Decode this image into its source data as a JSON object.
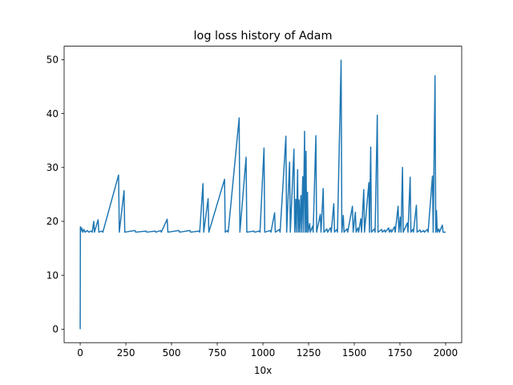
{
  "chart_data": {
    "type": "line",
    "title": "log loss history of Adam",
    "xlabel": "10x",
    "ylabel": "",
    "xlim": [
      -88,
      2088
    ],
    "ylim": [
      -2.5,
      52.5
    ],
    "xticks": [
      0,
      250,
      500,
      750,
      1000,
      1250,
      1500,
      1750,
      2000
    ],
    "yticks": [
      0,
      10,
      20,
      30,
      40,
      50
    ],
    "grid": false,
    "legend": false,
    "baseline": 18.0,
    "series": [
      {
        "color": "#1f77b4",
        "points": [
          [
            0,
            0
          ],
          [
            1,
            19.0
          ],
          [
            2,
            18.0
          ],
          [
            8,
            18.8
          ],
          [
            14,
            18.0
          ],
          [
            20,
            18.5
          ],
          [
            26,
            18.0
          ],
          [
            40,
            18.3
          ],
          [
            46,
            18.0
          ],
          [
            60,
            18.2
          ],
          [
            66,
            18.0
          ],
          [
            74,
            20.0
          ],
          [
            78,
            18.0
          ],
          [
            98,
            20.3
          ],
          [
            102,
            18.0
          ],
          [
            118,
            18.2
          ],
          [
            124,
            18.0
          ],
          [
            210,
            28.6
          ],
          [
            214,
            18.0
          ],
          [
            240,
            25.7
          ],
          [
            244,
            18.0
          ],
          [
            300,
            18.3
          ],
          [
            304,
            18.0
          ],
          [
            360,
            18.2
          ],
          [
            364,
            18.0
          ],
          [
            410,
            18.2
          ],
          [
            414,
            18.0
          ],
          [
            440,
            18.3
          ],
          [
            444,
            18.0
          ],
          [
            476,
            20.4
          ],
          [
            480,
            18.0
          ],
          [
            540,
            18.3
          ],
          [
            544,
            18.0
          ],
          [
            600,
            18.3
          ],
          [
            604,
            18.0
          ],
          [
            650,
            18.2
          ],
          [
            654,
            18.0
          ],
          [
            672,
            27.0
          ],
          [
            676,
            18.0
          ],
          [
            700,
            24.2
          ],
          [
            704,
            18.0
          ],
          [
            790,
            27.8
          ],
          [
            794,
            18.0
          ],
          [
            806,
            18.3
          ],
          [
            810,
            18.0
          ],
          [
            870,
            39.2
          ],
          [
            874,
            18.0
          ],
          [
            908,
            31.9
          ],
          [
            912,
            18.0
          ],
          [
            950,
            18.2
          ],
          [
            954,
            18.0
          ],
          [
            980,
            18.2
          ],
          [
            984,
            18.0
          ],
          [
            1006,
            33.6
          ],
          [
            1010,
            18.0
          ],
          [
            1040,
            18.3
          ],
          [
            1044,
            18.0
          ],
          [
            1064,
            21.6
          ],
          [
            1068,
            18.0
          ],
          [
            1090,
            18.5
          ],
          [
            1094,
            18.0
          ],
          [
            1126,
            35.8
          ],
          [
            1130,
            18.0
          ],
          [
            1146,
            31.0
          ],
          [
            1150,
            18.0
          ],
          [
            1170,
            33.4
          ],
          [
            1174,
            18.0
          ],
          [
            1180,
            24.1
          ],
          [
            1183,
            18.0
          ],
          [
            1190,
            29.6
          ],
          [
            1193,
            18.0
          ],
          [
            1198,
            24.0
          ],
          [
            1201,
            18.0
          ],
          [
            1208,
            24.8
          ],
          [
            1211,
            18.0
          ],
          [
            1218,
            28.3
          ],
          [
            1221,
            18.0
          ],
          [
            1228,
            36.7
          ],
          [
            1231,
            18.0
          ],
          [
            1236,
            33.0
          ],
          [
            1239,
            18.0
          ],
          [
            1244,
            25.4
          ],
          [
            1247,
            18.0
          ],
          [
            1256,
            19.6
          ],
          [
            1259,
            18.0
          ],
          [
            1272,
            19.1
          ],
          [
            1275,
            18.0
          ],
          [
            1290,
            35.9
          ],
          [
            1294,
            18.0
          ],
          [
            1314,
            21.3
          ],
          [
            1318,
            18.0
          ],
          [
            1330,
            26.1
          ],
          [
            1334,
            18.0
          ],
          [
            1350,
            18.6
          ],
          [
            1354,
            18.0
          ],
          [
            1370,
            18.8
          ],
          [
            1374,
            18.0
          ],
          [
            1388,
            23.3
          ],
          [
            1392,
            18.0
          ],
          [
            1404,
            18.5
          ],
          [
            1408,
            18.0
          ],
          [
            1428,
            49.9
          ],
          [
            1432,
            18.0
          ],
          [
            1440,
            21.1
          ],
          [
            1444,
            18.0
          ],
          [
            1460,
            18.6
          ],
          [
            1464,
            18.0
          ],
          [
            1490,
            22.8
          ],
          [
            1494,
            18.0
          ],
          [
            1506,
            21.7
          ],
          [
            1510,
            18.0
          ],
          [
            1520,
            18.8
          ],
          [
            1524,
            18.0
          ],
          [
            1536,
            20.5
          ],
          [
            1540,
            18.0
          ],
          [
            1552,
            25.9
          ],
          [
            1556,
            18.0
          ],
          [
            1580,
            27.2
          ],
          [
            1583,
            18.0
          ],
          [
            1590,
            33.8
          ],
          [
            1594,
            18.0
          ],
          [
            1610,
            18.6
          ],
          [
            1614,
            18.0
          ],
          [
            1626,
            39.7
          ],
          [
            1630,
            18.0
          ],
          [
            1650,
            18.5
          ],
          [
            1654,
            18.0
          ],
          [
            1666,
            18.4
          ],
          [
            1670,
            18.0
          ],
          [
            1688,
            18.8
          ],
          [
            1692,
            18.0
          ],
          [
            1700,
            18.5
          ],
          [
            1704,
            18.0
          ],
          [
            1720,
            19.0
          ],
          [
            1724,
            18.0
          ],
          [
            1740,
            22.8
          ],
          [
            1744,
            18.0
          ],
          [
            1752,
            20.8
          ],
          [
            1756,
            18.0
          ],
          [
            1764,
            30.0
          ],
          [
            1768,
            18.0
          ],
          [
            1790,
            19.7
          ],
          [
            1794,
            18.0
          ],
          [
            1806,
            28.2
          ],
          [
            1810,
            18.0
          ],
          [
            1820,
            18.5
          ],
          [
            1824,
            18.0
          ],
          [
            1840,
            23.0
          ],
          [
            1844,
            18.0
          ],
          [
            1860,
            18.4
          ],
          [
            1864,
            18.0
          ],
          [
            1880,
            18.3
          ],
          [
            1884,
            18.0
          ],
          [
            1900,
            18.5
          ],
          [
            1904,
            18.0
          ],
          [
            1928,
            28.4
          ],
          [
            1932,
            18.0
          ],
          [
            1942,
            47.0
          ],
          [
            1946,
            18.0
          ],
          [
            1950,
            22.0
          ],
          [
            1954,
            18.0
          ],
          [
            1962,
            18.6
          ],
          [
            1966,
            18.0
          ],
          [
            1982,
            19.3
          ],
          [
            1986,
            18.0
          ],
          [
            2000,
            18.0
          ]
        ]
      }
    ]
  }
}
